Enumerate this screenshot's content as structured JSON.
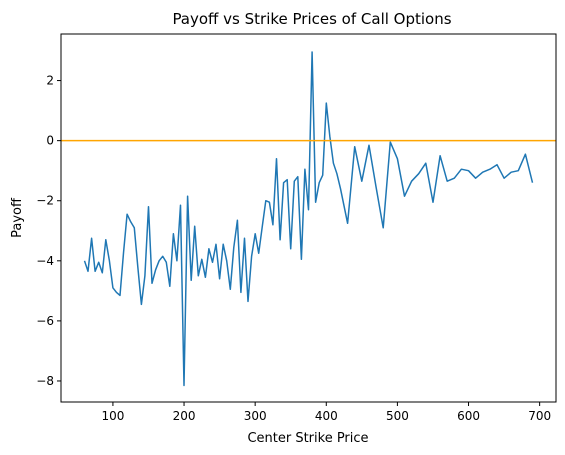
{
  "chart_data": {
    "type": "line",
    "title": "Payoff vs Strike Prices of Call Options",
    "xlabel": "Center Strike Price",
    "ylabel": "Payoff",
    "xlim": [
      27,
      723
    ],
    "ylim": [
      -8.7,
      3.55
    ],
    "xticks": [
      100,
      200,
      300,
      400,
      500,
      600,
      700
    ],
    "yticks": [
      -8,
      -6,
      -4,
      -2,
      0,
      2
    ],
    "grid": false,
    "series": [
      {
        "color": "#1f77b4",
        "x": [
          60,
          65,
          70,
          75,
          80,
          85,
          90,
          95,
          100,
          105,
          110,
          115,
          120,
          125,
          130,
          135,
          140,
          145,
          150,
          155,
          160,
          165,
          170,
          175,
          180,
          185,
          190,
          195,
          200,
          205,
          210,
          215,
          220,
          225,
          230,
          235,
          240,
          245,
          250,
          255,
          260,
          265,
          270,
          275,
          280,
          285,
          290,
          295,
          300,
          305,
          310,
          315,
          320,
          325,
          330,
          335,
          340,
          345,
          350,
          355,
          360,
          365,
          370,
          375,
          380,
          385,
          390,
          395,
          400,
          405,
          410,
          415,
          420,
          430,
          440,
          450,
          460,
          470,
          480,
          490,
          500,
          510,
          520,
          530,
          540,
          550,
          560,
          570,
          580,
          590,
          600,
          610,
          620,
          630,
          640,
          650,
          660,
          670,
          680,
          690
        ],
        "y": [
          -4.0,
          -4.35,
          -3.25,
          -4.35,
          -4.05,
          -4.4,
          -3.3,
          -4.0,
          -4.9,
          -5.05,
          -5.15,
          -3.7,
          -2.45,
          -2.7,
          -2.9,
          -4.2,
          -5.45,
          -4.5,
          -2.2,
          -4.75,
          -4.3,
          -4.0,
          -3.85,
          -4.05,
          -4.85,
          -3.1,
          -4.0,
          -2.15,
          -8.15,
          -1.85,
          -4.65,
          -2.85,
          -4.5,
          -3.95,
          -4.55,
          -3.6,
          -4.05,
          -3.45,
          -4.6,
          -3.45,
          -4.0,
          -4.95,
          -3.55,
          -2.65,
          -5.05,
          -3.25,
          -5.35,
          -3.85,
          -3.1,
          -3.75,
          -2.85,
          -2.0,
          -2.05,
          -2.8,
          -0.6,
          -3.3,
          -1.4,
          -1.3,
          -3.6,
          -1.35,
          -1.2,
          -3.95,
          -0.95,
          -2.3,
          2.95,
          -2.05,
          -1.4,
          -1.15,
          1.25,
          0.15,
          -0.75,
          -1.1,
          -1.6,
          -2.75,
          -0.2,
          -1.35,
          -0.15,
          -1.55,
          -2.9,
          -0.05,
          -0.6,
          -1.85,
          -1.35,
          -1.1,
          -0.75,
          -2.05,
          -0.5,
          -1.35,
          -1.25,
          -0.95,
          -1.0,
          -1.25,
          -1.05,
          -0.95,
          -0.8,
          -1.25,
          -1.05,
          -1.0,
          -0.45,
          -1.4
        ]
      },
      {
        "color": "#ffa500",
        "type": "hline",
        "y": 0
      }
    ]
  }
}
